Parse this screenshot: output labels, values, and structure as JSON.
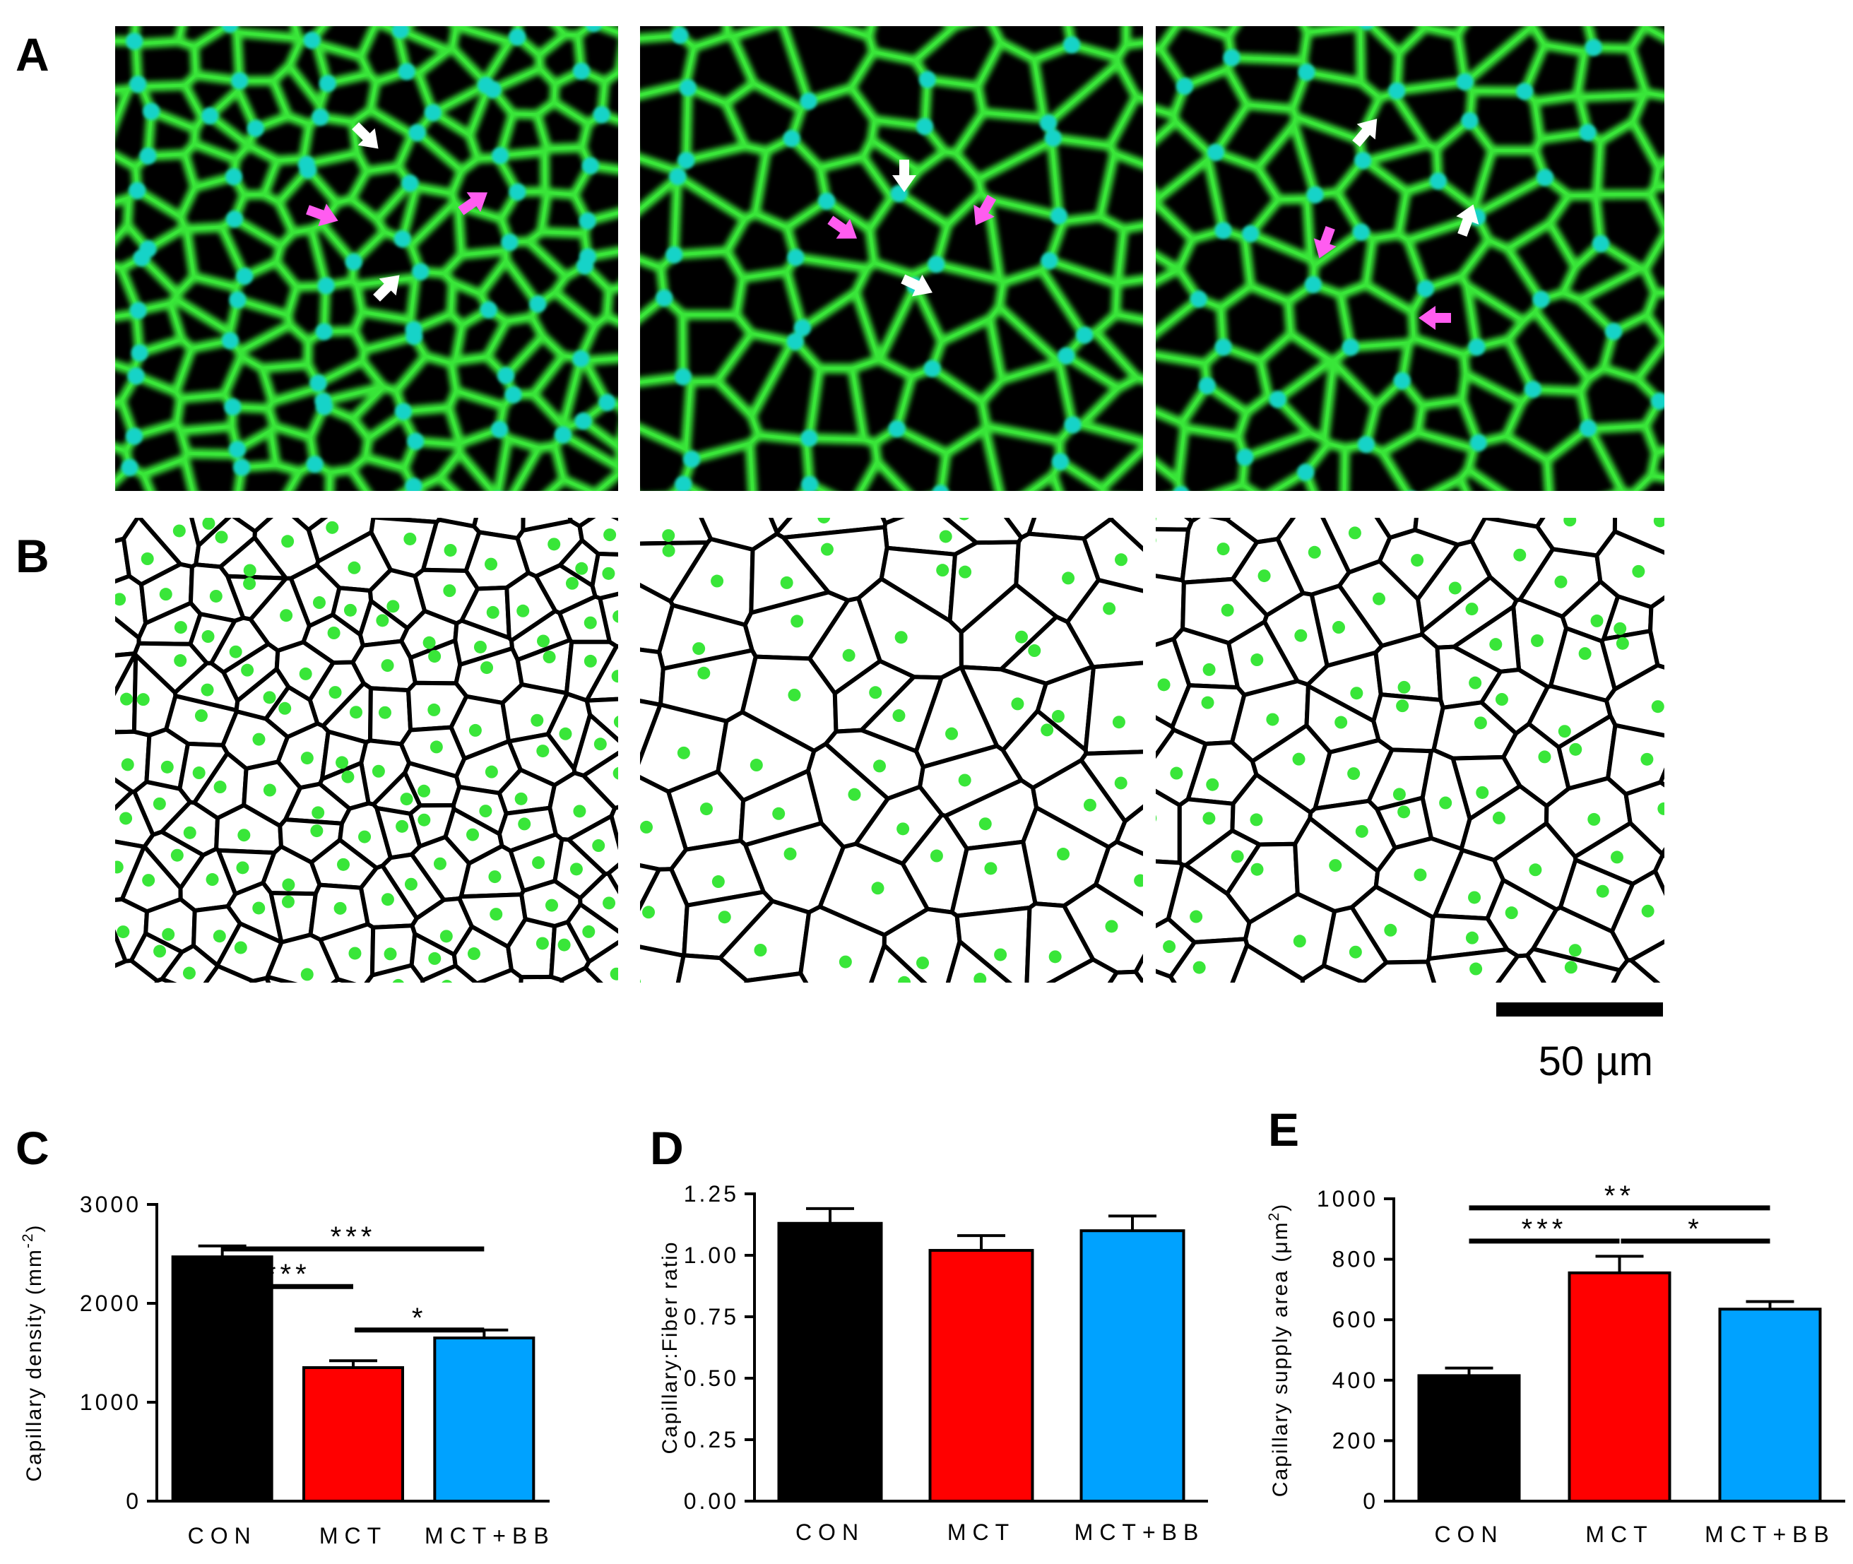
{
  "panels": {
    "a": {
      "letter": "A"
    },
    "b": {
      "letter": "B"
    },
    "scale_bar": {
      "label": "50 µm"
    }
  },
  "colors": {
    "con": "#000000",
    "mct": "#ff0000",
    "mct_bb": "#00a2ff",
    "stain": "#39e639",
    "nucleus": "#19d3c8",
    "arrow_capillary": "#ffffff",
    "arrow_pink": "#ff5cf0"
  },
  "chart_data": [
    {
      "letter": "C",
      "type": "bar",
      "ylabel": "Capillary density (mm⁻²)",
      "ylabel_main": "Capillary density (mm",
      "ylabel_sup": "-2",
      "ylabel_close": ")",
      "categories": [
        "CON",
        "MCT",
        "MCT+BB"
      ],
      "values": [
        2470,
        1350,
        1650
      ],
      "errors": [
        110,
        70,
        80
      ],
      "ylim": [
        0,
        3000
      ],
      "ticks": [
        0,
        1000,
        2000,
        3000
      ],
      "tick_labels": [
        "0",
        "1000",
        "2000",
        "3000"
      ],
      "significance": [
        {
          "from": 0,
          "to": 2,
          "label": "***",
          "y": 2550
        },
        {
          "from": 0,
          "to": 1,
          "label": "***",
          "y": 2170
        },
        {
          "from": 1,
          "to": 2,
          "label": "*",
          "y": 1730
        }
      ]
    },
    {
      "letter": "D",
      "type": "bar",
      "ylabel": "Capillary:Fiber ratio",
      "ylabel_main": "Capillary:Fiber ratio",
      "ylabel_sup": "",
      "ylabel_close": "",
      "categories": [
        "CON",
        "MCT",
        "MCT+BB"
      ],
      "values": [
        1.13,
        1.02,
        1.1
      ],
      "errors": [
        0.06,
        0.06,
        0.06
      ],
      "ylim": [
        0,
        1.25
      ],
      "ticks": [
        0,
        0.25,
        0.5,
        0.75,
        1.0,
        1.25
      ],
      "tick_labels": [
        "0.00",
        "0.25",
        "0.50",
        "0.75",
        "1.00",
        "1.25"
      ],
      "significance": []
    },
    {
      "letter": "E",
      "type": "bar",
      "ylabel": "Capillary supply area (μm²)",
      "ylabel_main": "Capillary supply area (μm",
      "ylabel_sup": "2",
      "ylabel_close": ")",
      "categories": [
        "CON",
        "MCT",
        "MCT+BB"
      ],
      "values": [
        415,
        755,
        635
      ],
      "errors": [
        25,
        55,
        25
      ],
      "ylim": [
        0,
        1000
      ],
      "ticks": [
        0,
        200,
        400,
        600,
        800,
        1000
      ],
      "tick_labels": [
        "0",
        "200",
        "400",
        "600",
        "800",
        "1000"
      ],
      "significance": [
        {
          "from": 0,
          "to": 2,
          "label": "**",
          "y": 970
        },
        {
          "from": 0,
          "to": 1,
          "label": "***",
          "y": 860
        },
        {
          "from": 1,
          "to": 2,
          "label": "*",
          "y": 860
        }
      ]
    }
  ]
}
